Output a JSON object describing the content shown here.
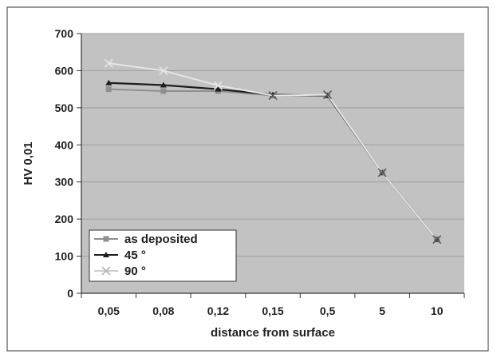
{
  "chart_data": {
    "type": "line",
    "title": "",
    "xlabel": "distance from surface",
    "ylabel": "HV 0,01",
    "categories": [
      "0,05",
      "0,08",
      "0,12",
      "0,15",
      "0,5",
      "5",
      "10"
    ],
    "ylim": [
      0,
      700
    ],
    "yticks": [
      0,
      100,
      200,
      300,
      400,
      500,
      600,
      700
    ],
    "grid": "horizontal",
    "legend_position": "bottom-left",
    "series": [
      {
        "name": "as deposited",
        "marker": "square",
        "color": "#8f8f8f",
        "values": [
          550,
          545,
          545,
          533,
          533,
          325,
          145
        ]
      },
      {
        "name": "45 °",
        "marker": "triangle",
        "color": "#1e1e1e",
        "values": [
          567,
          561,
          550,
          535,
          533,
          325,
          145
        ]
      },
      {
        "name": "90 °",
        "marker": "cross",
        "color": "#e6e6e6",
        "values": [
          620,
          600,
          560,
          533,
          535,
          325,
          145
        ]
      }
    ],
    "colors": {
      "plot_background": "#c2c2c2",
      "grid": "#9e9e9e",
      "text": "#222222"
    }
  }
}
